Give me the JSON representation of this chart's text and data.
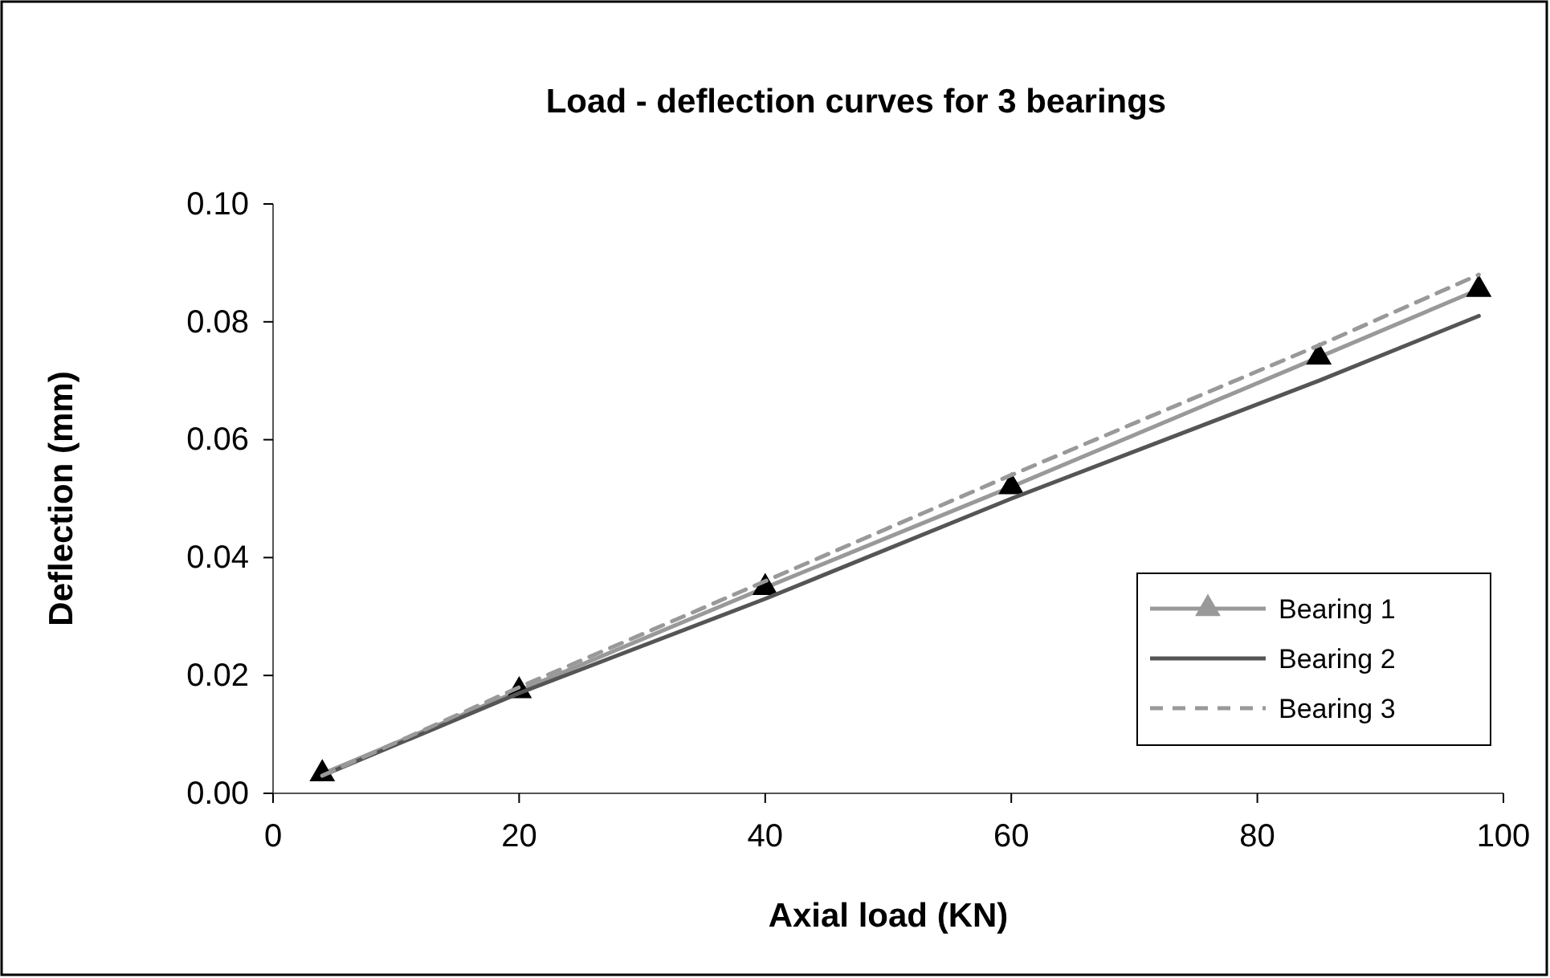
{
  "chart_data": {
    "type": "line",
    "title": "Load - deflection curves for 3 bearings",
    "xlabel": "Axial load (KN)",
    "ylabel": "Deflection (mm)",
    "x": [
      4,
      20,
      40,
      60,
      85,
      98
    ],
    "series": [
      {
        "name": "Bearing 1",
        "color": "#999999",
        "marker": "triangle",
        "line_style": "solid",
        "values": [
          0.0033,
          0.0174,
          0.0349,
          0.052,
          0.074,
          0.0855
        ]
      },
      {
        "name": "Bearing 2",
        "color": "#555555",
        "marker": "none",
        "line_style": "solid",
        "values": [
          0.003,
          0.017,
          0.033,
          0.05,
          0.07,
          0.081
        ]
      },
      {
        "name": "Bearing 3",
        "color": "#999999",
        "marker": "none",
        "line_style": "dashed",
        "values": [
          0.003,
          0.018,
          0.036,
          0.054,
          0.076,
          0.088
        ]
      }
    ],
    "xlim": [
      0,
      100
    ],
    "xticks": [
      0,
      20,
      40,
      60,
      80,
      100
    ],
    "ylim": [
      0,
      0.1
    ],
    "yticks": [
      {
        "value": 0,
        "label": "0.00"
      },
      {
        "value": 0.02,
        "label": "0.02"
      },
      {
        "value": 0.04,
        "label": "0.04"
      },
      {
        "value": 0.06,
        "label": "0.06"
      },
      {
        "value": 0.08,
        "label": "0.08"
      },
      {
        "value": 0.1,
        "label": "0.10"
      }
    ],
    "grid": false,
    "legend": "bottom right"
  }
}
